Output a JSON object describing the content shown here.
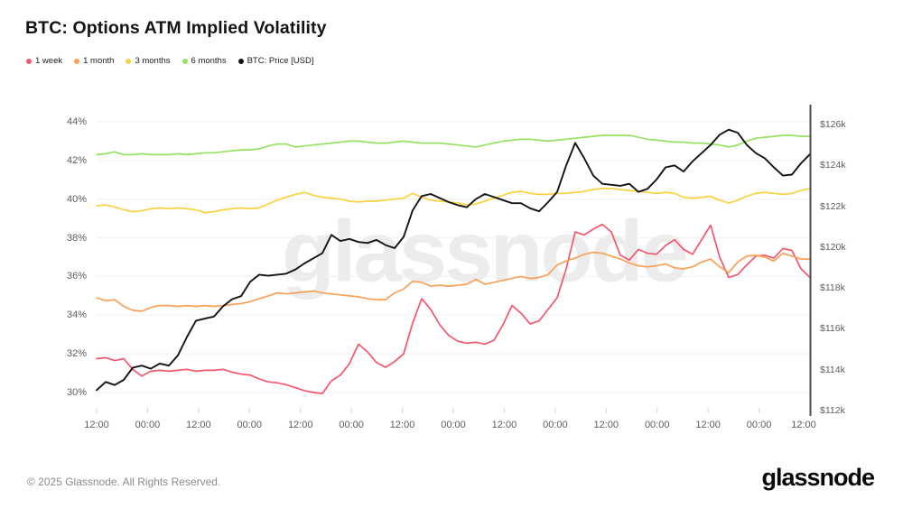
{
  "title": "BTC: Options ATM Implied Volatility",
  "watermark": "glassnode",
  "footer": {
    "copyright": "© 2025 Glassnode. All Rights Reserved.",
    "brand": "glassnode"
  },
  "chart_data": {
    "type": "line",
    "title": "BTC: Options ATM Implied Volatility",
    "grid": "horizontal-only",
    "legend_position": "top-left",
    "x_axis": {
      "tick_labels": [
        "12:00",
        "00:00",
        "12:00",
        "00:00",
        "12:00",
        "00:00",
        "12:00",
        "00:00",
        "12:00",
        "00:00",
        "12:00",
        "00:00",
        "12:00",
        "00:00",
        "12:00"
      ]
    },
    "y_left": {
      "unit": "%",
      "ticks": [
        44,
        42,
        40,
        38,
        36,
        34,
        32,
        30
      ],
      "tick_labels": [
        "44%",
        "42%",
        "40%",
        "38%",
        "36%",
        "34%",
        "32%",
        "30%"
      ],
      "range": [
        29.5,
        44.5
      ]
    },
    "y_right": {
      "unit": "USD",
      "ticks": [
        126,
        124,
        122,
        120,
        118,
        116,
        114,
        112
      ],
      "tick_labels": [
        "$126k",
        "$124k",
        "$122k",
        "$120k",
        "$118k",
        "$116k",
        "$114k",
        "$112k"
      ],
      "range": [
        111.8,
        126.8
      ]
    },
    "series": [
      {
        "name": "1 week",
        "color": "#f5566d",
        "axis": "left",
        "width": 1.7,
        "values": [
          31.75,
          31.8,
          31.65,
          31.75,
          31.2,
          30.85,
          31.1,
          31.15,
          31.1,
          31.15,
          31.2,
          31.1,
          31.15,
          31.15,
          31.2,
          31.05,
          30.95,
          30.9,
          30.7,
          30.55,
          30.5,
          30.4,
          30.25,
          30.1,
          30.0,
          29.95,
          30.6,
          30.9,
          31.5,
          32.5,
          32.1,
          31.55,
          31.3,
          31.6,
          32.0,
          33.6,
          34.85,
          34.3,
          33.5,
          32.95,
          32.65,
          32.55,
          32.6,
          32.5,
          32.7,
          33.5,
          34.5,
          34.1,
          33.55,
          33.7,
          34.3,
          34.9,
          36.4,
          38.3,
          38.15,
          38.45,
          38.7,
          38.3,
          37.1,
          36.85,
          37.4,
          37.2,
          37.15,
          37.6,
          37.9,
          37.4,
          37.15,
          37.9,
          38.65,
          37.0,
          35.95,
          36.1,
          36.6,
          37.05,
          37.1,
          36.95,
          37.45,
          37.35,
          36.4,
          35.95
        ]
      },
      {
        "name": "1 month",
        "color": "#fba055",
        "axis": "left",
        "width": 1.7,
        "values": [
          34.9,
          34.75,
          34.8,
          34.45,
          34.25,
          34.2,
          34.4,
          34.5,
          34.5,
          34.45,
          34.5,
          34.45,
          34.5,
          34.45,
          34.5,
          34.55,
          34.6,
          34.7,
          34.85,
          35.0,
          35.15,
          35.1,
          35.15,
          35.2,
          35.25,
          35.15,
          35.1,
          35.05,
          35.0,
          34.95,
          34.85,
          34.8,
          34.8,
          35.15,
          35.35,
          35.75,
          35.7,
          35.5,
          35.55,
          35.5,
          35.55,
          35.6,
          35.85,
          35.6,
          35.7,
          35.8,
          35.9,
          36.0,
          35.9,
          35.95,
          36.1,
          36.6,
          36.8,
          36.95,
          37.15,
          37.25,
          37.2,
          37.05,
          36.9,
          36.7,
          36.55,
          36.5,
          36.55,
          36.65,
          36.45,
          36.4,
          36.5,
          36.75,
          36.9,
          36.5,
          36.2,
          36.75,
          37.05,
          37.1,
          37.0,
          36.8,
          37.2,
          37.05,
          36.9,
          36.9
        ]
      },
      {
        "name": "3 months",
        "color": "#fcd13e",
        "axis": "left",
        "width": 1.7,
        "values": [
          39.65,
          39.7,
          39.6,
          39.45,
          39.35,
          39.4,
          39.5,
          39.55,
          39.5,
          39.55,
          39.5,
          39.45,
          39.3,
          39.35,
          39.45,
          39.5,
          39.55,
          39.5,
          39.55,
          39.75,
          39.95,
          40.1,
          40.25,
          40.35,
          40.2,
          40.1,
          40.05,
          40.0,
          39.9,
          39.85,
          39.9,
          39.9,
          39.95,
          40.0,
          40.05,
          40.3,
          40.1,
          39.95,
          39.9,
          39.85,
          39.8,
          39.7,
          39.75,
          39.9,
          40.05,
          40.2,
          40.35,
          40.4,
          40.3,
          40.25,
          40.25,
          40.3,
          40.3,
          40.35,
          40.4,
          40.5,
          40.55,
          40.55,
          40.5,
          40.45,
          40.4,
          40.35,
          40.3,
          40.35,
          40.3,
          40.1,
          40.05,
          40.1,
          40.15,
          39.95,
          39.8,
          39.95,
          40.15,
          40.3,
          40.35,
          40.3,
          40.25,
          40.3,
          40.45,
          40.55
        ]
      },
      {
        "name": "6 months",
        "color": "#96e362",
        "axis": "left",
        "width": 1.7,
        "values": [
          42.3,
          42.35,
          42.45,
          42.3,
          42.3,
          42.35,
          42.3,
          42.3,
          42.3,
          42.35,
          42.3,
          42.35,
          42.4,
          42.4,
          42.45,
          42.5,
          42.55,
          42.55,
          42.6,
          42.75,
          42.85,
          42.85,
          42.7,
          42.75,
          42.8,
          42.85,
          42.9,
          42.95,
          43.0,
          43.0,
          42.95,
          42.9,
          42.9,
          42.95,
          43.0,
          42.95,
          42.9,
          42.9,
          42.9,
          42.85,
          42.8,
          42.75,
          42.7,
          42.8,
          42.9,
          43.0,
          43.05,
          43.1,
          43.1,
          43.05,
          43.0,
          43.05,
          43.1,
          43.15,
          43.2,
          43.25,
          43.3,
          43.3,
          43.3,
          43.3,
          43.2,
          43.1,
          43.05,
          43.0,
          42.95,
          42.95,
          42.9,
          42.9,
          42.85,
          42.8,
          42.7,
          42.8,
          43.0,
          43.15,
          43.2,
          43.25,
          43.3,
          43.3,
          43.25,
          43.25
        ]
      },
      {
        "name": "BTC: Price [USD]",
        "color": "#141414",
        "axis": "right",
        "width": 1.9,
        "values": [
          113.0,
          113.4,
          113.25,
          113.5,
          114.1,
          114.2,
          114.05,
          114.3,
          114.2,
          114.7,
          115.6,
          116.4,
          116.5,
          116.6,
          117.1,
          117.45,
          117.6,
          118.3,
          118.65,
          118.6,
          118.65,
          118.7,
          118.9,
          119.2,
          119.45,
          119.7,
          120.6,
          120.3,
          120.4,
          120.25,
          120.2,
          120.35,
          120.1,
          119.95,
          120.5,
          121.8,
          122.5,
          122.6,
          122.4,
          122.2,
          122.05,
          121.95,
          122.35,
          122.6,
          122.45,
          122.3,
          122.15,
          122.15,
          121.9,
          121.75,
          122.2,
          122.7,
          124.0,
          125.1,
          124.35,
          123.5,
          123.1,
          123.05,
          123.0,
          123.1,
          122.7,
          122.85,
          123.3,
          123.9,
          124.0,
          123.7,
          124.2,
          124.6,
          125.0,
          125.5,
          125.75,
          125.6,
          125.0,
          124.6,
          124.35,
          123.9,
          123.5,
          123.55,
          124.1,
          124.55
        ]
      }
    ]
  }
}
